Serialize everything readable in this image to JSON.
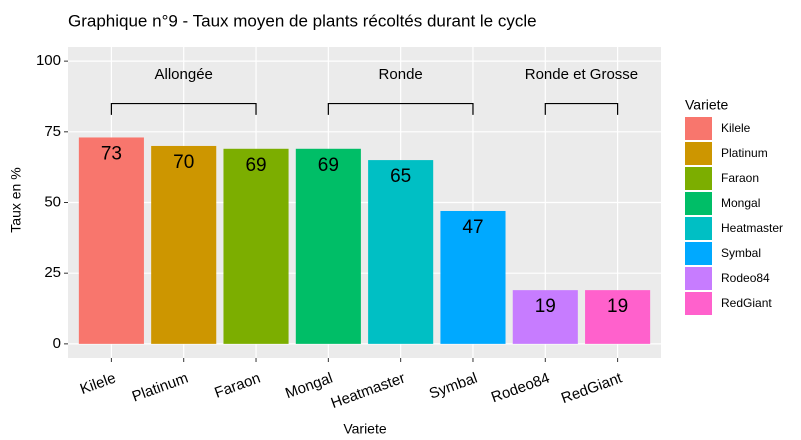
{
  "chart_data": {
    "type": "bar",
    "title": "Graphique n°9 - Taux moyen de plants récoltés durant le cycle",
    "x_label": "Variete",
    "y_label": "Taux en %",
    "categories": [
      "Kilele",
      "Platinum",
      "Faraon",
      "Mongal",
      "Heatmaster",
      "Symbal",
      "Rodeo84",
      "RedGiant"
    ],
    "values": [
      73,
      70,
      69,
      69,
      65,
      47,
      19,
      19
    ],
    "colors": [
      "#F8766D",
      "#CD9600",
      "#7CAE00",
      "#00BE67",
      "#00BFC4",
      "#00A9FF",
      "#C77CFF",
      "#FF61CC"
    ],
    "ylim": [
      -5,
      105
    ],
    "yticks": [
      0,
      25,
      50,
      75,
      100
    ],
    "grid": true,
    "legend": {
      "title": "Variete",
      "position": "right"
    },
    "groups": [
      {
        "label": "Allongée",
        "categories": [
          "Kilele",
          "Platinum",
          "Faraon"
        ]
      },
      {
        "label": "Ronde",
        "categories": [
          "Mongal",
          "Heatmaster",
          "Symbal"
        ]
      },
      {
        "label": "Ronde et Grosse",
        "categories": [
          "Rodeo84",
          "RedGiant"
        ]
      }
    ]
  }
}
